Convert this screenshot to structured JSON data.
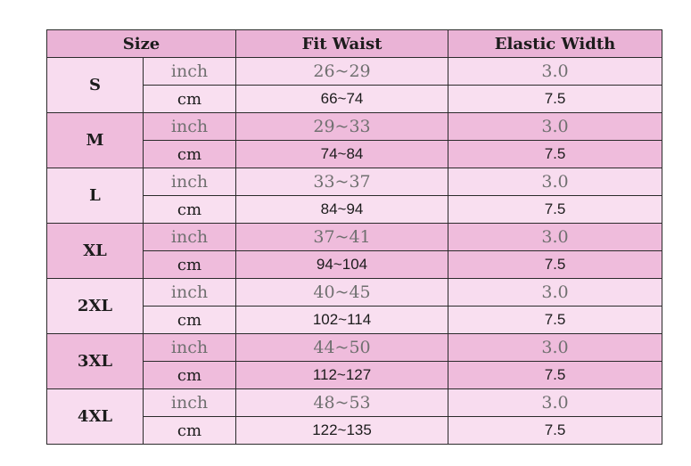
{
  "headers": {
    "size": "Size",
    "fit_waist": "Fit Waist",
    "elastic_width": "Elastic Width"
  },
  "colors": {
    "header_bg": "#eab3d6",
    "light_group_bg": "#f8dcef",
    "dark_group_bg": "#efbcdc",
    "inch_text": "#707070",
    "cm_text": "#1c1c1c"
  },
  "rows": [
    {
      "size": "S",
      "inch": {
        "unit": "inch",
        "fit": "26~29",
        "elastic": "3.0"
      },
      "cm": {
        "unit": "cm",
        "fit": "66~74",
        "elastic": "7.5"
      }
    },
    {
      "size": "M",
      "inch": {
        "unit": "inch",
        "fit": "29~33",
        "elastic": "3.0"
      },
      "cm": {
        "unit": "cm",
        "fit": "74~84",
        "elastic": "7.5"
      }
    },
    {
      "size": "L",
      "inch": {
        "unit": "inch",
        "fit": "33~37",
        "elastic": "3.0"
      },
      "cm": {
        "unit": "cm",
        "fit": "84~94",
        "elastic": "7.5"
      }
    },
    {
      "size": "XL",
      "inch": {
        "unit": "inch",
        "fit": "37~41",
        "elastic": "3.0"
      },
      "cm": {
        "unit": "cm",
        "fit": "94~104",
        "elastic": "7.5"
      }
    },
    {
      "size": "2XL",
      "inch": {
        "unit": "inch",
        "fit": "40~45",
        "elastic": "3.0"
      },
      "cm": {
        "unit": "cm",
        "fit": "102~114",
        "elastic": "7.5"
      }
    },
    {
      "size": "3XL",
      "inch": {
        "unit": "inch",
        "fit": "44~50",
        "elastic": "3.0"
      },
      "cm": {
        "unit": "cm",
        "fit": "112~127",
        "elastic": "7.5"
      }
    },
    {
      "size": "4XL",
      "inch": {
        "unit": "inch",
        "fit": "48~53",
        "elastic": "3.0"
      },
      "cm": {
        "unit": "cm",
        "fit": "122~135",
        "elastic": "7.5"
      }
    }
  ]
}
